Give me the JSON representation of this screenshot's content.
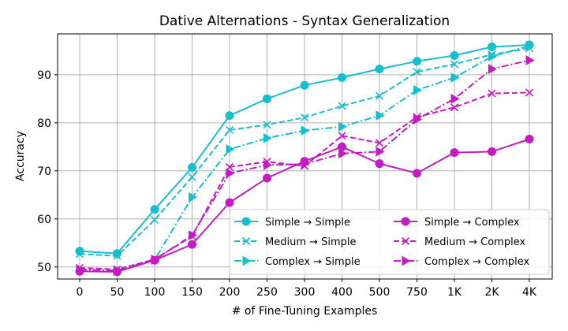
{
  "chart_data": {
    "type": "line",
    "title": "Dative Alternations - Syntax Generalization",
    "xlabel": "# of Fine-Tuning Examples",
    "ylabel": "Accuracy",
    "categories": [
      "0",
      "50",
      "100",
      "150",
      "200",
      "250",
      "300",
      "400",
      "500",
      "750",
      "1K",
      "2K",
      "4K"
    ],
    "ylim": [
      47.5,
      98.5
    ],
    "yticks": [
      50,
      60,
      70,
      80,
      90
    ],
    "grid": true,
    "legend_position": "lower-right",
    "series": [
      {
        "name": "Simple → Simple",
        "color": "#17becf",
        "marker": "circle",
        "dash": "solid",
        "values": [
          53.3,
          52.8,
          62.0,
          70.7,
          81.5,
          85.0,
          87.8,
          89.4,
          91.2,
          92.8,
          94.0,
          95.8,
          96.2
        ]
      },
      {
        "name": "Medium → Simple",
        "color": "#17becf",
        "marker": "x",
        "dash": "dashed",
        "values": [
          52.7,
          52.3,
          59.8,
          68.7,
          78.5,
          79.6,
          81.1,
          83.5,
          85.6,
          90.6,
          92.2,
          94.2,
          95.5
        ]
      },
      {
        "name": "Complex → Simple",
        "color": "#17becf",
        "marker": "triangle-right",
        "dash": "dashdot",
        "values": [
          49.4,
          49.3,
          51.5,
          64.5,
          74.5,
          76.8,
          78.4,
          79.2,
          81.5,
          86.8,
          89.4,
          93.8,
          96.0
        ]
      },
      {
        "name": "Simple → Complex",
        "color": "#c41bc2",
        "marker": "circle",
        "dash": "solid",
        "values": [
          49.1,
          49.0,
          51.4,
          54.7,
          63.4,
          68.5,
          72.0,
          75.0,
          71.5,
          69.5,
          73.8,
          74.0,
          76.6
        ]
      },
      {
        "name": "Medium → Complex",
        "color": "#c41bc2",
        "marker": "x",
        "dash": "dashed",
        "values": [
          49.8,
          49.5,
          51.6,
          56.4,
          70.8,
          71.9,
          71.0,
          77.3,
          75.8,
          81.2,
          83.2,
          86.1,
          86.3
        ]
      },
      {
        "name": "Complex → Complex",
        "color": "#c41bc2",
        "marker": "triangle-right",
        "dash": "dashdot",
        "values": [
          49.5,
          49.2,
          51.5,
          56.6,
          69.5,
          71.2,
          71.4,
          73.6,
          74.0,
          80.7,
          85.0,
          91.2,
          93.0
        ]
      }
    ]
  }
}
